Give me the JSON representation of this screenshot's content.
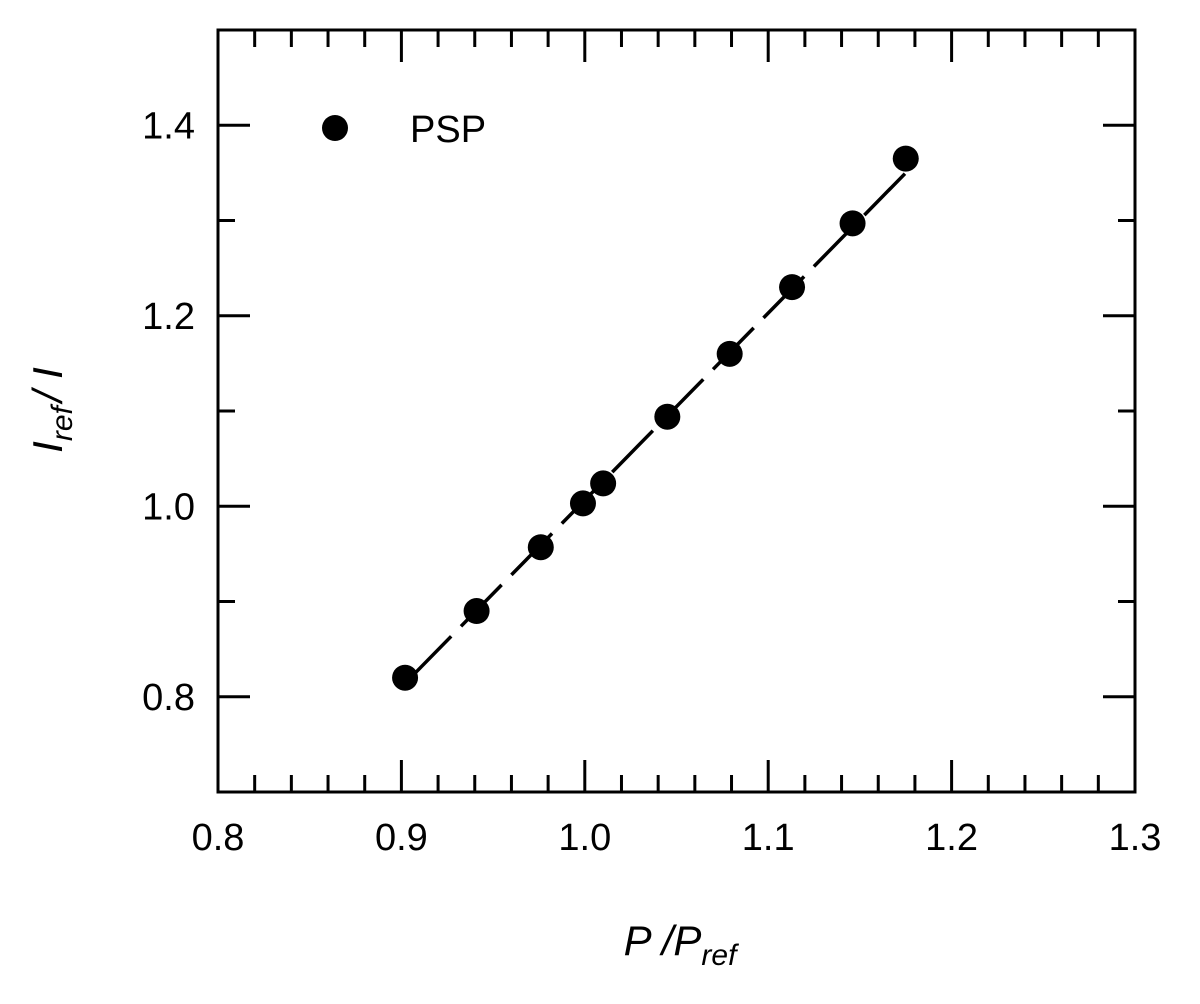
{
  "chart_data": {
    "type": "scatter",
    "xlim": [
      0.8,
      1.3
    ],
    "ylim": [
      0.7,
      1.5
    ],
    "x_ticks": [
      "0.8",
      "0.9",
      "1.0",
      "1.1",
      "1.2",
      "1.3"
    ],
    "y_ticks": [
      "0.8",
      "1.0",
      "1.2",
      "1.4"
    ],
    "xlabel": {
      "main": "P /P",
      "sub": "ref"
    },
    "ylabel": {
      "main": "I",
      "sub": "ref",
      "tail": "/ I"
    },
    "legend": {
      "position": "top-left",
      "label": "PSP",
      "marker": "filled-circle"
    },
    "grid": false,
    "series": [
      {
        "name": "PSP",
        "x": [
          0.902,
          0.941,
          0.976,
          0.999,
          1.01,
          1.045,
          1.079,
          1.113,
          1.146,
          1.175
        ],
        "y": [
          0.82,
          0.89,
          0.957,
          1.003,
          1.024,
          1.094,
          1.16,
          1.23,
          1.297,
          1.365
        ]
      }
    ],
    "fit_line": {
      "style": "dashed",
      "x": [
        0.905,
        1.175
      ],
      "y": [
        0.82,
        1.35
      ]
    },
    "colors": {
      "marker": "#000000",
      "axis": "#000000",
      "background": "#ffffff"
    }
  }
}
